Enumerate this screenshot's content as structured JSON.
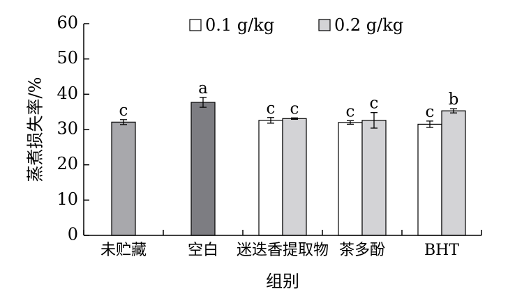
{
  "chart_data": {
    "type": "bar",
    "ylabel": "蒸煮损失率/%",
    "xlabel": "组别",
    "ylim": [
      0,
      60
    ],
    "yticks": [
      0,
      10,
      20,
      30,
      40,
      50,
      60
    ],
    "grid": false,
    "legend_position": "top",
    "categories": [
      "未贮藏",
      "空白",
      "迷迭香提取物",
      "茶多酚",
      "BHT"
    ],
    "series": [
      {
        "name": "0.1 g/kg",
        "color": "#ffffff"
      },
      {
        "name": "0.2 g/kg",
        "color": "#d3d3d6"
      }
    ],
    "bars": [
      {
        "category": "未贮藏",
        "series": null,
        "value": 32.1,
        "error": 0.7,
        "label": "c",
        "color": "#a8a8ac"
      },
      {
        "category": "空白",
        "series": null,
        "value": 37.7,
        "error": 1.4,
        "label": "a",
        "color": "#7d7d82"
      },
      {
        "category": "迷迭香提取物",
        "series": "0.1 g/kg",
        "value": 32.6,
        "error": 0.8,
        "label": "c",
        "color": "#ffffff"
      },
      {
        "category": "迷迭香提取物",
        "series": "0.2 g/kg",
        "value": 33.1,
        "error": 0.2,
        "label": "c",
        "color": "#d3d3d6"
      },
      {
        "category": "茶多酚",
        "series": "0.1 g/kg",
        "value": 32.0,
        "error": 0.5,
        "label": "c",
        "color": "#ffffff"
      },
      {
        "category": "茶多酚",
        "series": "0.2 g/kg",
        "value": 32.6,
        "error": 2.2,
        "label": "c",
        "color": "#d3d3d6"
      },
      {
        "category": "BHT",
        "series": "0.1 g/kg",
        "value": 31.5,
        "error": 0.9,
        "label": "c",
        "color": "#ffffff"
      },
      {
        "category": "BHT",
        "series": "0.2 g/kg",
        "value": 35.3,
        "error": 0.6,
        "label": "b",
        "color": "#d3d3d6"
      }
    ]
  }
}
